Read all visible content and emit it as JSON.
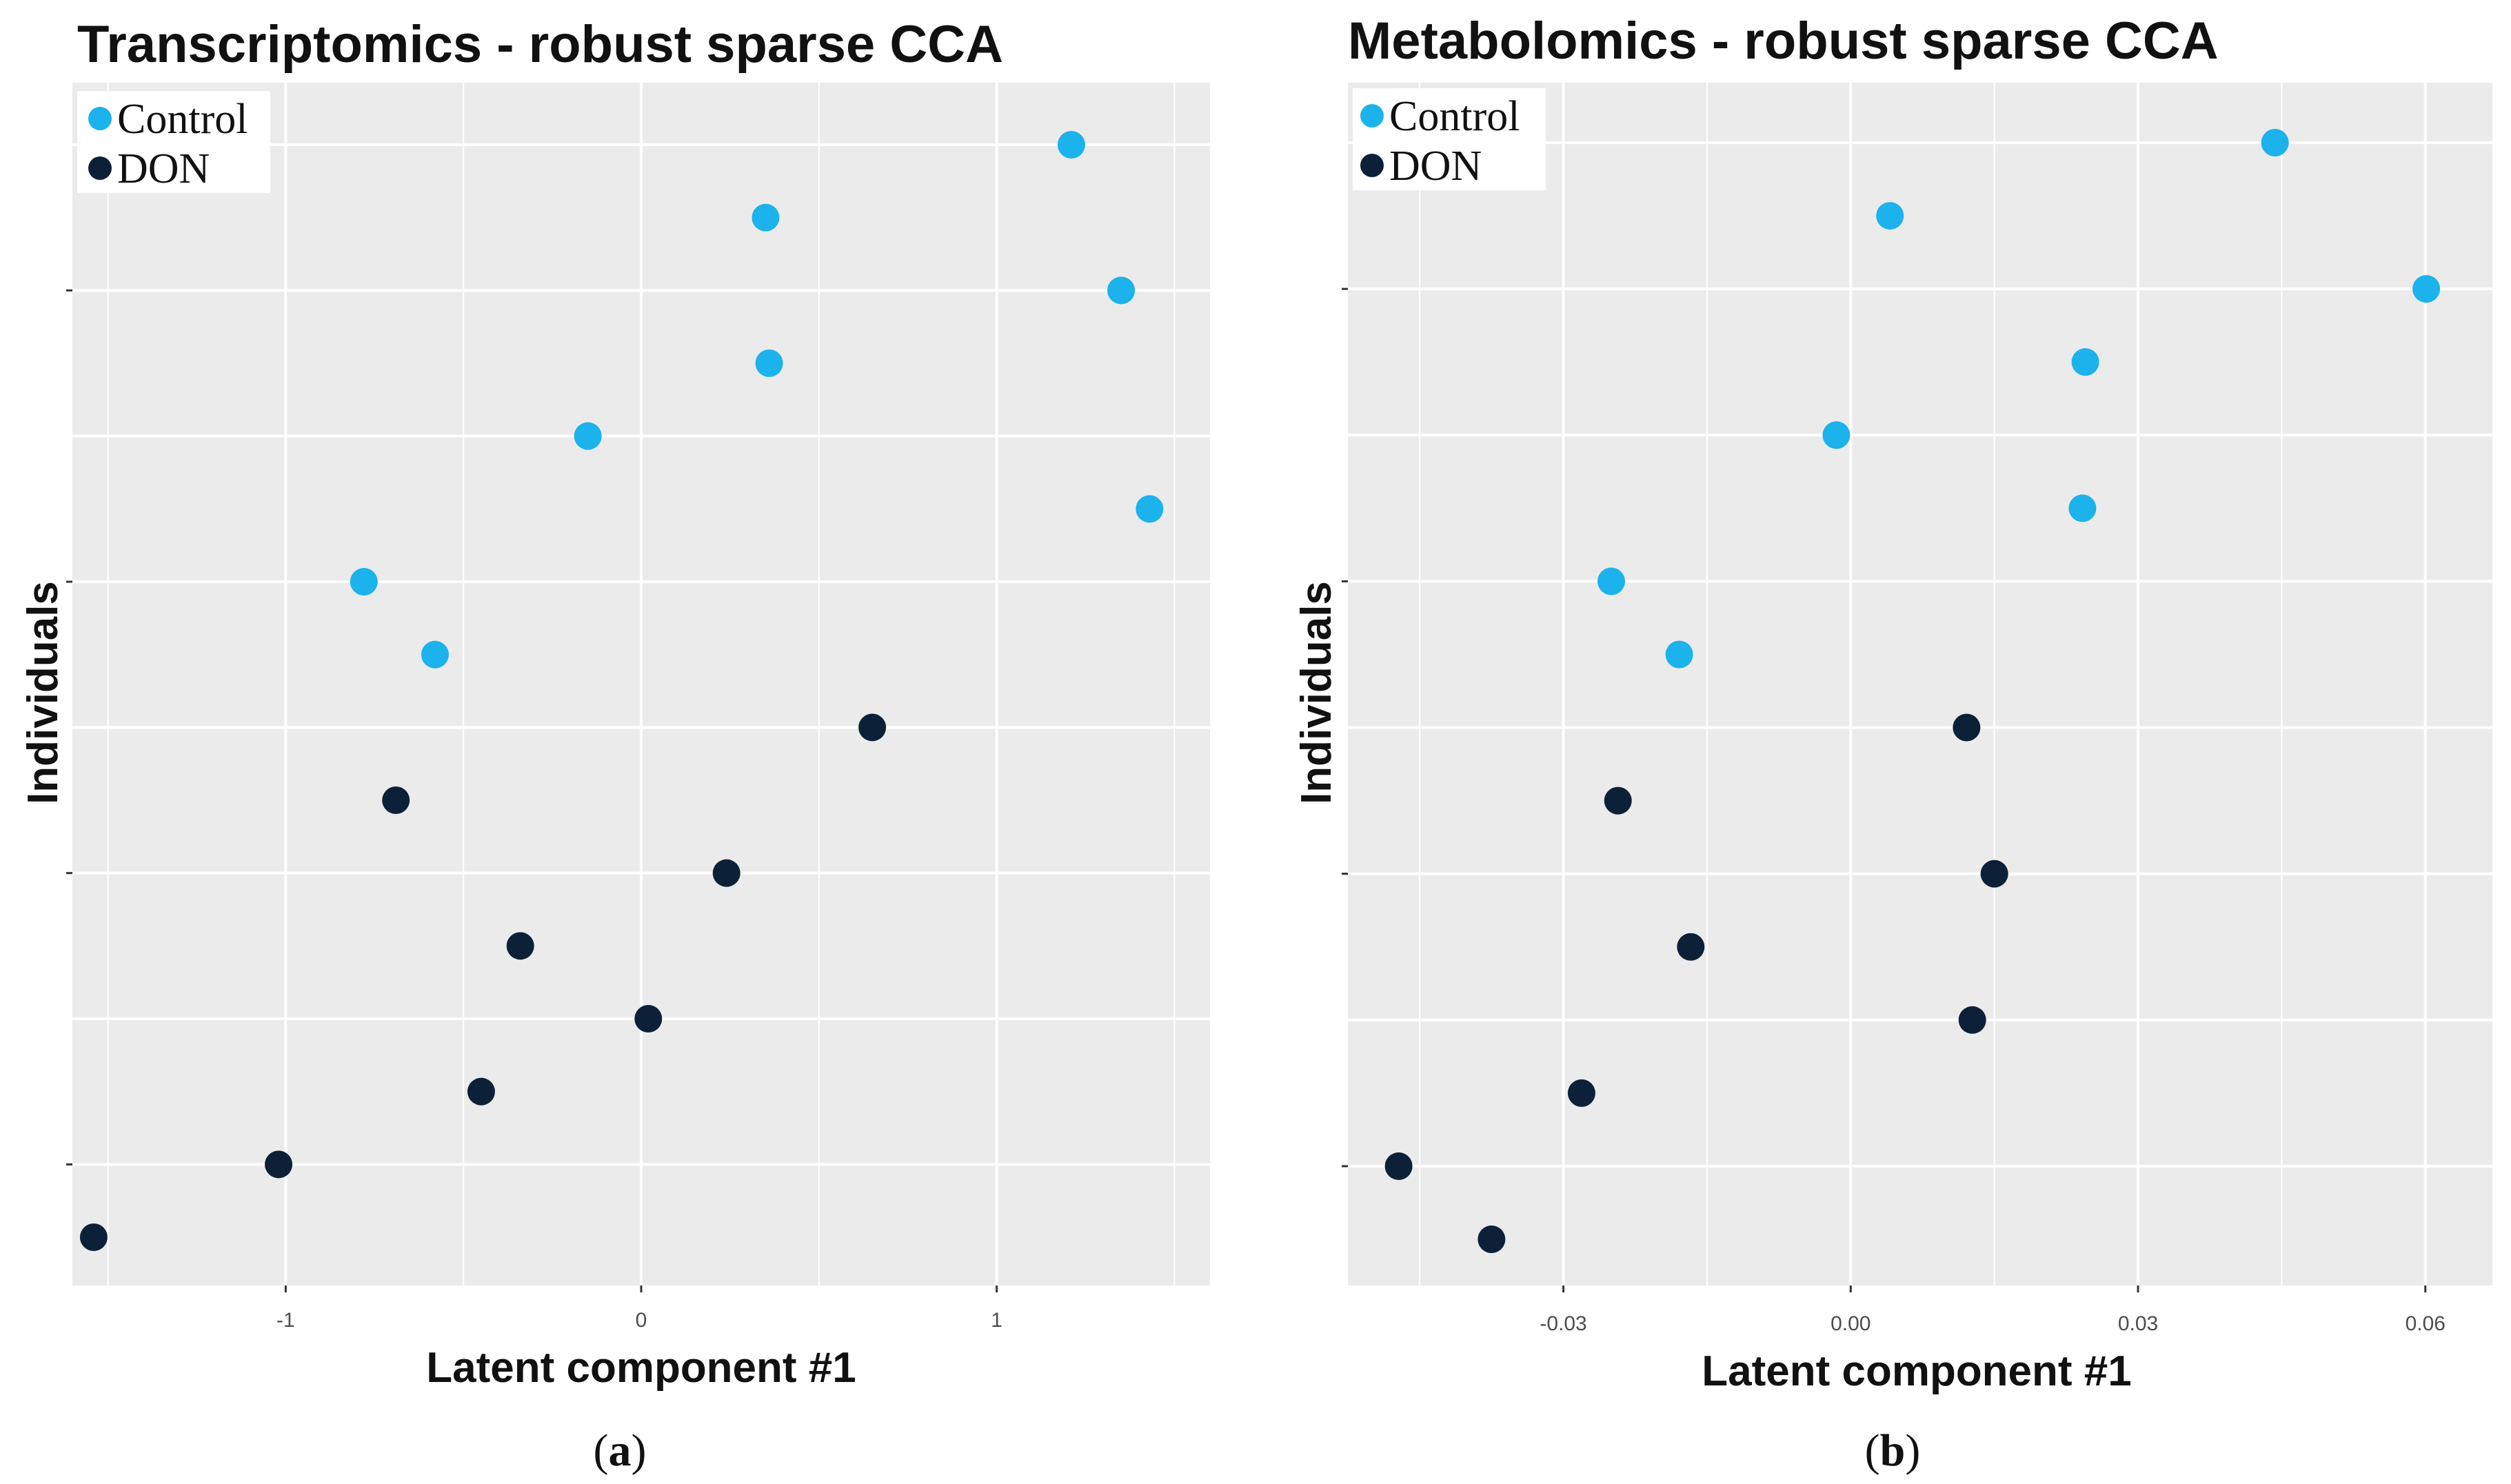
{
  "colors": {
    "control": "#1cb2ec",
    "don": "#0c2138",
    "panel_bg": "#ebebeb",
    "grid": "#ffffff"
  },
  "chart_data": [
    {
      "type": "scatter",
      "title": "Transcriptomics - robust sparse CCA",
      "xlabel": "Latent component #1",
      "ylabel": "Individuals",
      "caption_letter": "a",
      "xlim": [
        -1.6,
        1.6
      ],
      "x_ticks": [
        -1,
        0,
        1
      ],
      "x_tick_labels": [
        "-1",
        "0",
        "1"
      ],
      "y_range": [
        1,
        16
      ],
      "legend": {
        "position": "top-left",
        "entries": [
          "Control",
          "DON"
        ]
      },
      "series": [
        {
          "name": "Control",
          "x": [
            1.21,
            0.35,
            1.35,
            0.36,
            -0.15,
            1.43,
            -0.78,
            -0.58
          ],
          "y": [
            16,
            15,
            14,
            13,
            12,
            11,
            10,
            9
          ]
        },
        {
          "name": "DON",
          "x": [
            0.65,
            -0.69,
            0.24,
            -0.34,
            0.02,
            -0.45,
            -1.02,
            -1.54
          ],
          "y": [
            8,
            7,
            6,
            5,
            4,
            3,
            2,
            1
          ]
        }
      ]
    },
    {
      "type": "scatter",
      "title": "Metabolomics - robust sparse CCA",
      "xlabel": "Latent component #1",
      "ylabel": "Individuals",
      "caption_letter": "b",
      "xlim": [
        -0.0525,
        0.067
      ],
      "x_ticks": [
        -0.03,
        0.0,
        0.03,
        0.06
      ],
      "x_tick_labels": [
        "-0.03",
        "0.00",
        "0.03",
        "0.06"
      ],
      "y_range": [
        1,
        16
      ],
      "legend": {
        "position": "top-left",
        "entries": [
          "Control",
          "DON"
        ]
      },
      "series": [
        {
          "name": "Control",
          "x": [
            0.0443,
            0.0041,
            0.0601,
            0.0245,
            -0.0015,
            0.0242,
            -0.025,
            -0.0179
          ],
          "y": [
            16,
            15,
            14,
            13,
            12,
            11,
            10,
            9
          ]
        },
        {
          "name": "DON",
          "x": [
            0.0121,
            -0.0243,
            0.015,
            -0.0167,
            0.0127,
            -0.0281,
            -0.0472,
            -0.0375
          ],
          "y": [
            8,
            7,
            6,
            5,
            4,
            3,
            2,
            1
          ]
        }
      ]
    }
  ]
}
